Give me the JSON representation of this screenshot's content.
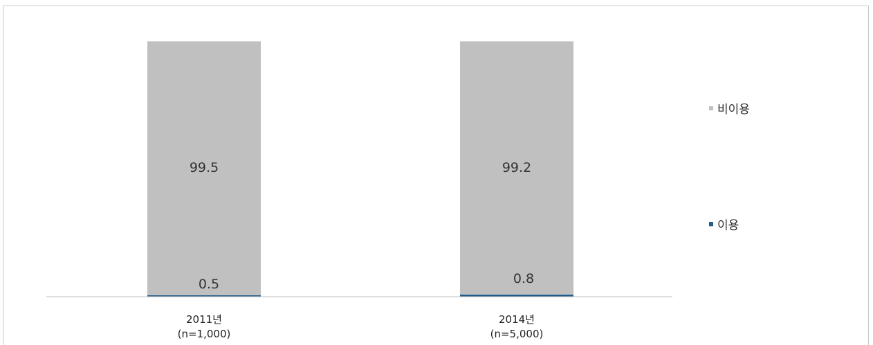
{
  "chart_data": {
    "type": "bar",
    "stacked": true,
    "normalized_percent": true,
    "categories": [
      "2011년",
      "2014년"
    ],
    "category_sublabels": [
      "(n=1,000)",
      "(n=5,000)"
    ],
    "series": [
      {
        "name": "이용",
        "values": [
          0.5,
          0.8
        ],
        "color": "#1f5c8b"
      },
      {
        "name": "비이용",
        "values": [
          99.5,
          99.2
        ],
        "color": "#c0c0c0"
      }
    ],
    "ylim": [
      0,
      100
    ],
    "grid": false,
    "legend_position": "right"
  }
}
